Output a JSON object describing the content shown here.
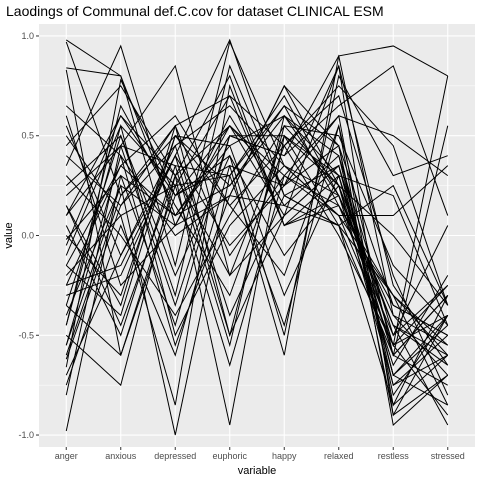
{
  "chart_data": {
    "type": "line",
    "title": "Laodings of Communal def.C.cov for dataset CLINICAL ESM",
    "xlabel": "variable",
    "ylabel": "value",
    "categories": [
      "anger",
      "anxious",
      "depressed",
      "euphoric",
      "happy",
      "relaxed",
      "restless",
      "stressed"
    ],
    "ylim": [
      -1.06,
      1.06
    ],
    "yticks": [
      -1.0,
      -0.5,
      0.0,
      0.5,
      1.0
    ],
    "ytick_labels": [
      "-1.0",
      "-0.5",
      "0.0",
      "0.5",
      "1.0"
    ],
    "grid": true,
    "legend": "none",
    "colors": {
      "panel_bg": "#ebebeb",
      "grid_major": "#ffffff",
      "line": "#000000",
      "tick_text": "#4d4d4d"
    },
    "series": [
      {
        "values": [
          0.98,
          0.8,
          -0.15,
          0.97,
          0.35,
          0.2,
          -0.45,
          -0.6
        ]
      },
      {
        "values": [
          0.97,
          0.2,
          0.55,
          -0.5,
          0.1,
          0.85,
          -0.9,
          -0.7
        ]
      },
      {
        "values": [
          0.84,
          0.8,
          0.1,
          0.45,
          0.6,
          0.3,
          -0.55,
          0.8
        ]
      },
      {
        "values": [
          0.83,
          -0.6,
          0.25,
          0.7,
          0.05,
          0.15,
          -0.35,
          -0.5
        ]
      },
      {
        "values": [
          0.65,
          0.4,
          -0.55,
          0.2,
          0.75,
          0.45,
          -0.8,
          -0.4
        ]
      },
      {
        "values": [
          0.55,
          -0.1,
          0.4,
          0.98,
          0.2,
          0.05,
          -0.3,
          -0.6
        ]
      },
      {
        "values": [
          0.45,
          0.75,
          0.3,
          -0.95,
          0.5,
          0.25,
          -0.6,
          -0.3
        ]
      },
      {
        "values": [
          0.35,
          0.95,
          0.05,
          0.55,
          0.25,
          0.6,
          0.5,
          0.3
        ]
      },
      {
        "values": [
          0.2,
          0.45,
          0.85,
          -0.2,
          0.1,
          0.35,
          -0.7,
          -0.85
        ]
      },
      {
        "values": [
          0.15,
          -0.35,
          0.55,
          0.7,
          0.45,
          0.0,
          -0.55,
          -0.4
        ]
      },
      {
        "values": [
          0.1,
          0.6,
          0.2,
          0.35,
          -0.6,
          0.9,
          0.95,
          0.8
        ]
      },
      {
        "values": [
          0.05,
          -0.5,
          0.35,
          0.3,
          0.7,
          0.2,
          -0.45,
          -0.95
        ]
      },
      {
        "values": [
          -0.02,
          0.3,
          -0.45,
          0.5,
          0.4,
          0.65,
          0.85,
          0.1
        ]
      },
      {
        "values": [
          -0.1,
          0.55,
          0.25,
          -0.65,
          0.3,
          0.1,
          -0.3,
          -0.55
        ]
      },
      {
        "values": [
          -0.15,
          -0.4,
          0.5,
          0.25,
          0.6,
          0.4,
          -0.75,
          -0.6
        ]
      },
      {
        "values": [
          -0.2,
          0.1,
          -0.85,
          0.75,
          0.05,
          0.3,
          0.2,
          -0.45
        ]
      },
      {
        "values": [
          -0.25,
          0.35,
          0.6,
          0.15,
          -0.2,
          0.55,
          -0.95,
          -0.7
        ]
      },
      {
        "values": [
          -0.3,
          -0.2,
          0.4,
          -0.5,
          0.55,
          0.25,
          0.0,
          -0.35
        ]
      },
      {
        "values": [
          -0.35,
          0.5,
          -0.3,
          0.85,
          0.2,
          0.05,
          -0.6,
          0.55
        ]
      },
      {
        "values": [
          -0.4,
          0.25,
          -1.0,
          0.3,
          0.65,
          0.15,
          -0.5,
          -0.25
        ]
      },
      {
        "values": [
          -0.45,
          0.65,
          0.15,
          -0.3,
          0.45,
          0.7,
          -0.2,
          -0.8
        ]
      },
      {
        "values": [
          -0.5,
          -0.75,
          0.3,
          0.55,
          0.1,
          0.35,
          -0.7,
          -0.4
        ]
      },
      {
        "values": [
          -0.55,
          0.4,
          0.0,
          0.2,
          0.75,
          0.25,
          -0.45,
          -0.65
        ]
      },
      {
        "values": [
          -0.62,
          0.15,
          0.55,
          -0.1,
          0.3,
          0.6,
          -0.85,
          -0.3
        ]
      },
      {
        "values": [
          -0.66,
          0.78,
          0.2,
          0.4,
          -0.5,
          0.8,
          0.3,
          0.4
        ]
      },
      {
        "values": [
          -0.7,
          -0.1,
          0.45,
          0.65,
          0.35,
          0.1,
          -0.55,
          -0.9
        ]
      },
      {
        "values": [
          -0.75,
          0.05,
          -0.6,
          0.35,
          0.25,
          0.45,
          -0.35,
          -0.5
        ]
      },
      {
        "values": [
          -0.8,
          0.45,
          0.35,
          -0.55,
          0.6,
          0.2,
          -0.65,
          -0.2
        ]
      },
      {
        "values": [
          -0.98,
          0.3,
          0.1,
          0.5,
          0.4,
          0.9,
          -0.4,
          -0.55
        ]
      },
      {
        "values": [
          0.0,
          -0.3,
          0.5,
          0.45,
          -0.3,
          0.3,
          -0.6,
          -0.75
        ]
      },
      {
        "values": [
          0.3,
          0.0,
          -0.4,
          0.1,
          0.55,
          0.5,
          -0.15,
          -0.45
        ]
      },
      {
        "values": [
          -0.05,
          0.6,
          0.3,
          -0.2,
          0.5,
          0.05,
          -0.85,
          -0.6
        ]
      },
      {
        "values": [
          0.6,
          -0.25,
          0.05,
          0.6,
          0.15,
          0.4,
          -0.5,
          0.05
        ]
      },
      {
        "values": [
          -0.6,
          0.2,
          0.5,
          0.15,
          0.45,
          0.75,
          0.45,
          -0.35
        ]
      },
      {
        "values": [
          0.25,
          0.5,
          -0.2,
          0.4,
          -0.1,
          0.25,
          -0.75,
          -0.5
        ]
      },
      {
        "values": [
          -0.35,
          -0.6,
          0.2,
          0.55,
          0.3,
          0.15,
          -0.3,
          -0.85
        ]
      },
      {
        "values": [
          0.4,
          0.15,
          0.45,
          -0.4,
          0.2,
          0.35,
          -0.55,
          -0.25
        ]
      },
      {
        "values": [
          -0.15,
          0.35,
          0.1,
          0.25,
          0.65,
          0.45,
          -0.9,
          -0.4
        ]
      },
      {
        "values": [
          0.15,
          -0.45,
          0.3,
          0.8,
          0.05,
          0.2,
          -0.4,
          -0.7
        ]
      },
      {
        "values": [
          -0.45,
          0.55,
          -0.5,
          0.05,
          0.35,
          0.1,
          0.1,
          0.35
        ]
      },
      {
        "values": [
          0.5,
          0.1,
          0.25,
          0.3,
          -0.45,
          0.55,
          -0.6,
          -0.3
        ]
      },
      {
        "values": [
          -0.25,
          -0.15,
          0.4,
          -0.05,
          0.25,
          0.85,
          -0.25,
          -0.65
        ]
      },
      {
        "values": [
          0.1,
          0.45,
          -0.35,
          0.5,
          0.5,
          0.3,
          -0.7,
          -0.45
        ]
      },
      {
        "values": [
          -0.55,
          0.25,
          0.05,
          0.2,
          0.15,
          0.05,
          0.25,
          -0.35
        ]
      }
    ]
  }
}
